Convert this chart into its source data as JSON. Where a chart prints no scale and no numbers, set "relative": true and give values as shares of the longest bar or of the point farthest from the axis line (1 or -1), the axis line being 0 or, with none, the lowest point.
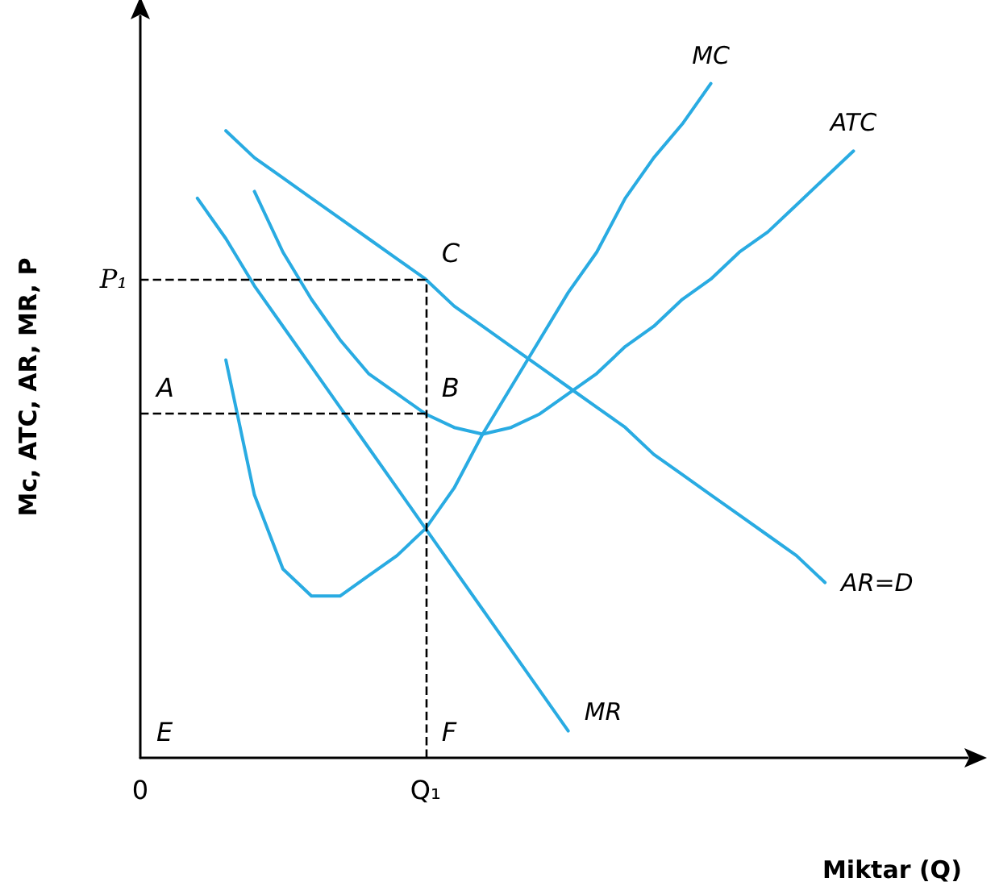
{
  "chart_data": {
    "type": "line",
    "relative": true,
    "grid": false,
    "marker": "none",
    "line_style": "solid",
    "xlabel": "Miktar (Q)",
    "ylabel": "Mc, ATC, AR, MR, P",
    "categories": [
      "0",
      null,
      null,
      null,
      null,
      null,
      null,
      null,
      null,
      null,
      "Q₁",
      null,
      null,
      null,
      null,
      null,
      null,
      null,
      null,
      null,
      null,
      null,
      null,
      null,
      null,
      null,
      null,
      null,
      null,
      null
    ],
    "series": [
      {
        "name": "MC",
        "color": "#29abe2",
        "values": [
          null,
          null,
          null,
          0.59,
          0.39,
          0.28,
          0.24,
          0.24,
          0.27,
          0.3,
          0.34,
          0.4,
          0.48,
          0.55,
          0.62,
          0.69,
          0.75,
          0.83,
          0.89,
          0.94,
          1,
          null,
          null,
          null,
          null,
          null,
          null,
          null,
          null,
          null
        ]
      },
      {
        "name": "ATC",
        "color": "#29abe2",
        "values": [
          null,
          null,
          null,
          null,
          0.84,
          0.75,
          0.68,
          0.62,
          0.57,
          0.54,
          0.51,
          0.49,
          0.48,
          0.49,
          0.51,
          0.54,
          0.57,
          0.61,
          0.64,
          0.68,
          0.71,
          0.75,
          0.78,
          0.82,
          0.86,
          0.9,
          null,
          null,
          null,
          null
        ]
      },
      {
        "name": "AR=D",
        "color": "#29abe2",
        "values": [
          null,
          null,
          null,
          0.93,
          0.89,
          0.86,
          0.83,
          0.8,
          0.77,
          0.74,
          0.71,
          0.67,
          0.64,
          0.61,
          0.58,
          0.55,
          0.52,
          0.49,
          0.45,
          0.42,
          0.39,
          0.36,
          0.33,
          0.3,
          0.26,
          null,
          null,
          null,
          null,
          null
        ]
      },
      {
        "name": "MR",
        "color": "#29abe2",
        "values": [
          null,
          null,
          0.83,
          0.77,
          0.7,
          0.64,
          0.58,
          0.52,
          0.46,
          0.4,
          0.34,
          0.28,
          0.22,
          0.16,
          0.1,
          0.04,
          null,
          null,
          null,
          null,
          null,
          null,
          null,
          null,
          null,
          null,
          null,
          null,
          null,
          null
        ]
      }
    ],
    "ref_lines": [
      {
        "axis": "y",
        "value": 0.71,
        "label": "P₁",
        "line_style": "dashed",
        "color": "#000000"
      },
      {
        "axis": "y",
        "value": 0.51,
        "line_style": "dashed",
        "color": "#000000"
      },
      {
        "axis": "x",
        "value": "Q₁",
        "line_style": "dashed",
        "color": "#000000"
      }
    ],
    "annotations": [
      {
        "text": "A",
        "y": 0.51
      },
      {
        "text": "B",
        "x": "Q₁",
        "y": 0.51
      },
      {
        "text": "C",
        "x": "Q₁",
        "y": 0.71
      },
      "E",
      {
        "text": "F",
        "x": "Q₁",
        "y": 0
      }
    ]
  }
}
